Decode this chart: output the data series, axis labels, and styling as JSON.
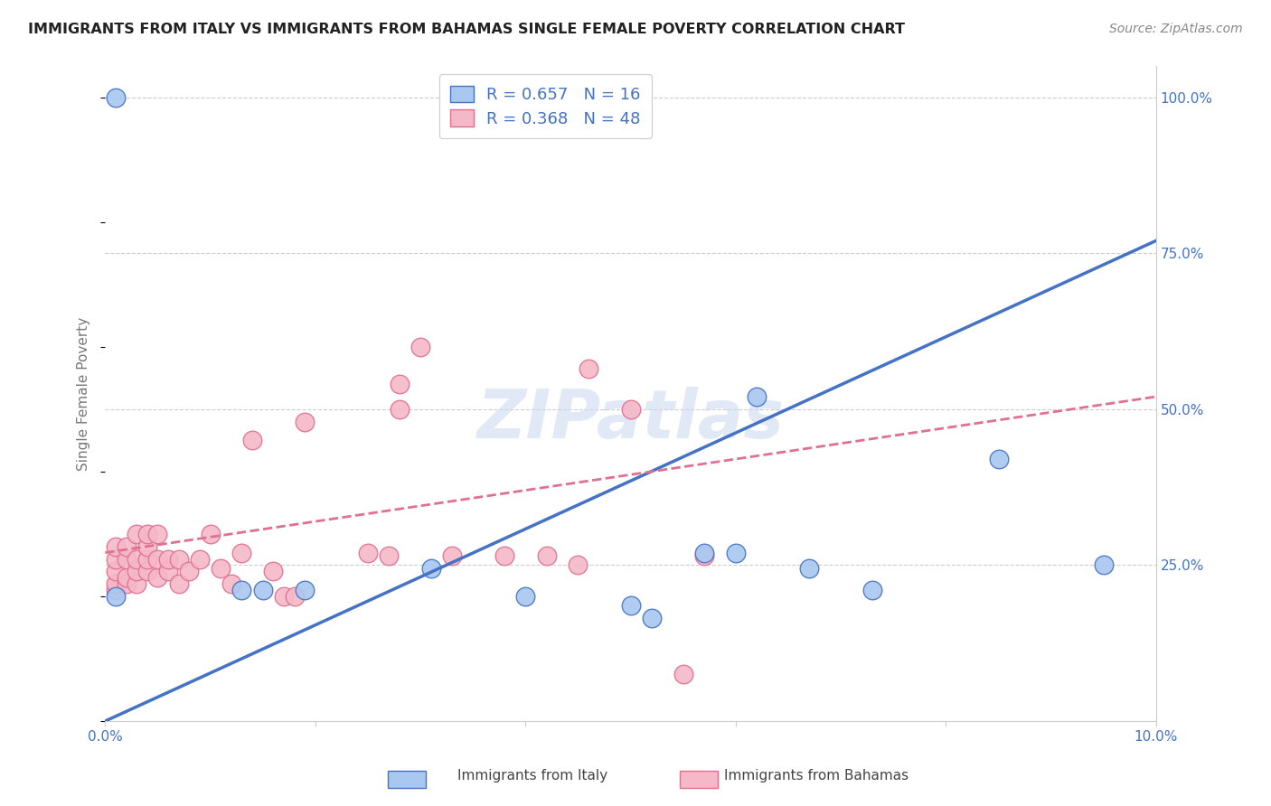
{
  "title": "IMMIGRANTS FROM ITALY VS IMMIGRANTS FROM BAHAMAS SINGLE FEMALE POVERTY CORRELATION CHART",
  "source": "Source: ZipAtlas.com",
  "ylabel": "Single Female Poverty",
  "yticks": [
    "25.0%",
    "50.0%",
    "75.0%",
    "100.0%"
  ],
  "ytick_vals": [
    0.25,
    0.5,
    0.75,
    1.0
  ],
  "xlim": [
    0.0,
    0.1
  ],
  "ylim": [
    0.0,
    1.05
  ],
  "italy_color": "#a8c8f0",
  "bahamas_color": "#f5b8c8",
  "italy_line_color": "#4472c4",
  "bahamas_line_color": "#e07090",
  "watermark": "ZIPatlas",
  "italy_line_x": [
    0.0,
    0.1
  ],
  "italy_line_y": [
    0.0,
    0.77
  ],
  "bahamas_line_x": [
    0.0,
    0.1
  ],
  "bahamas_line_y": [
    0.27,
    0.52
  ],
  "italy_scatter_x": [
    0.001,
    0.013,
    0.015,
    0.019,
    0.031,
    0.04,
    0.05,
    0.052,
    0.057,
    0.06,
    0.067,
    0.073,
    0.085,
    0.095,
    0.062,
    0.001
  ],
  "italy_scatter_y": [
    0.2,
    0.21,
    0.21,
    0.21,
    0.245,
    0.2,
    0.185,
    0.165,
    0.27,
    0.27,
    0.245,
    0.21,
    0.42,
    0.25,
    0.52,
    1.0
  ],
  "bahamas_scatter_x": [
    0.001,
    0.001,
    0.001,
    0.001,
    0.001,
    0.002,
    0.002,
    0.002,
    0.002,
    0.003,
    0.003,
    0.003,
    0.003,
    0.004,
    0.004,
    0.004,
    0.004,
    0.005,
    0.005,
    0.005,
    0.006,
    0.006,
    0.007,
    0.007,
    0.008,
    0.009,
    0.01,
    0.011,
    0.012,
    0.013,
    0.014,
    0.016,
    0.017,
    0.018,
    0.019,
    0.025,
    0.027,
    0.028,
    0.028,
    0.03,
    0.033,
    0.038,
    0.042,
    0.045,
    0.046,
    0.05,
    0.055,
    0.057
  ],
  "bahamas_scatter_y": [
    0.21,
    0.22,
    0.24,
    0.26,
    0.28,
    0.22,
    0.23,
    0.26,
    0.28,
    0.22,
    0.24,
    0.26,
    0.3,
    0.24,
    0.26,
    0.28,
    0.3,
    0.23,
    0.26,
    0.3,
    0.24,
    0.26,
    0.22,
    0.26,
    0.24,
    0.26,
    0.3,
    0.245,
    0.22,
    0.27,
    0.45,
    0.24,
    0.2,
    0.2,
    0.48,
    0.27,
    0.265,
    0.5,
    0.54,
    0.6,
    0.265,
    0.265,
    0.265,
    0.25,
    0.565,
    0.5,
    0.075,
    0.265
  ]
}
